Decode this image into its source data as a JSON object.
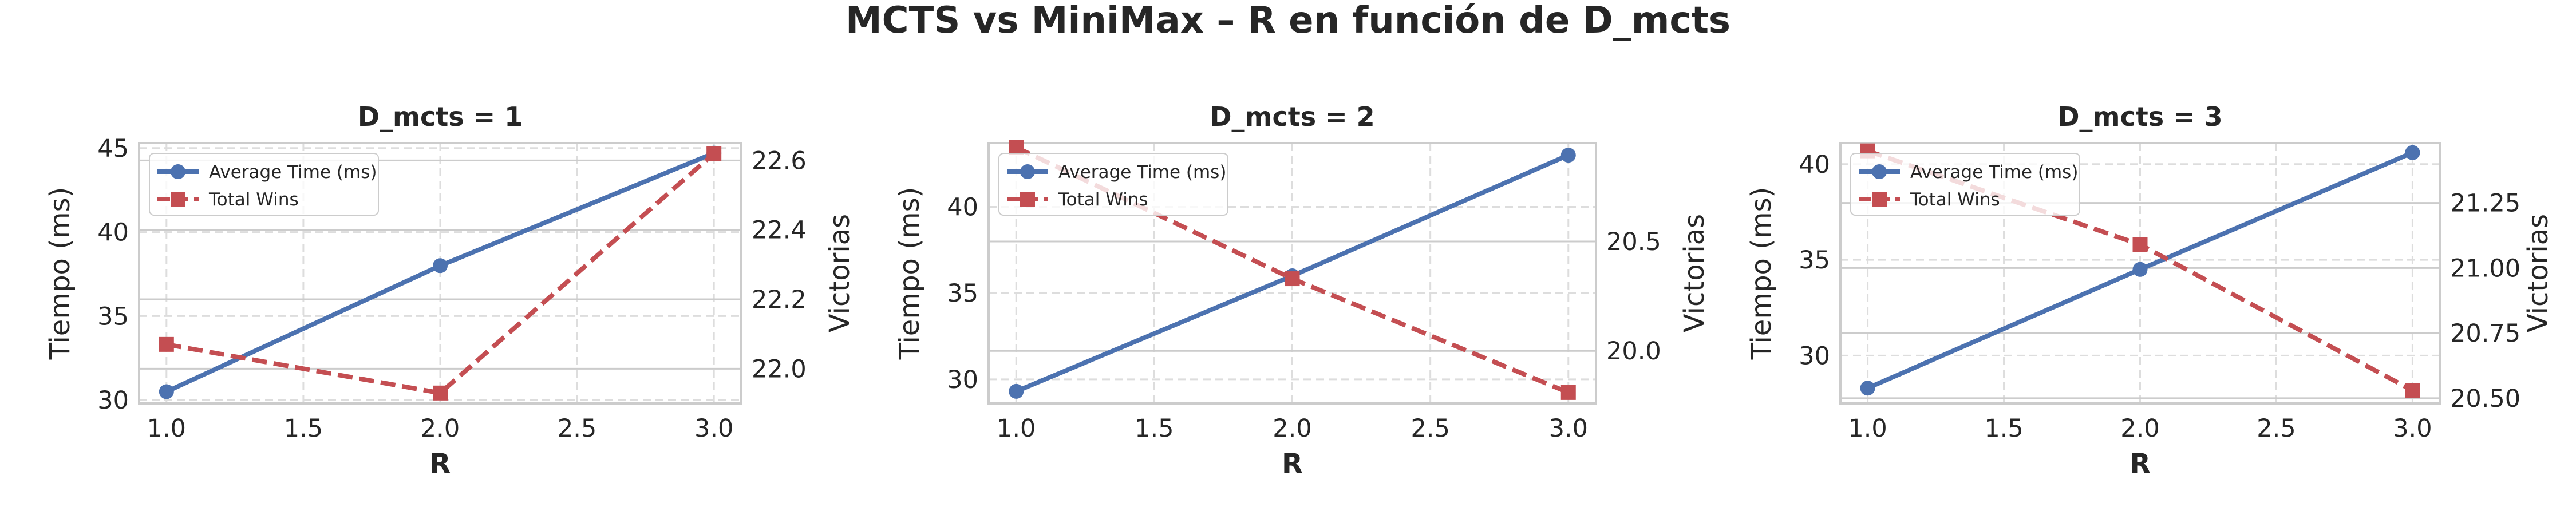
{
  "title": "MCTS vs MiniMax – R en función de D_mcts",
  "colors": {
    "time": "#4c72b0",
    "wins": "#c44e52",
    "grid": "#dddddd",
    "spine": "#cccccc",
    "text": "#262626"
  },
  "chart_data": [
    {
      "type": "line",
      "title": "D_mcts = 1",
      "xlabel": "R",
      "ylabel": "Tiempo (ms)",
      "y2label": "Victorias",
      "x": [
        1.0,
        2.0,
        3.0
      ],
      "xlim": [
        0.9,
        3.1
      ],
      "xticks": [
        "1.0",
        "1.5",
        "2.0",
        "2.5",
        "3.0"
      ],
      "ylim": [
        29.8,
        45.3
      ],
      "yticks": [
        "30",
        "35",
        "40",
        "45"
      ],
      "y2lim": [
        21.9,
        22.65
      ],
      "y2ticks": [
        "22.0",
        "22.2",
        "22.4",
        "22.6"
      ],
      "series": [
        {
          "name": "Average Time (ms)",
          "axis": "left",
          "values": [
            30.5,
            38.0,
            44.7
          ]
        },
        {
          "name": "Total Wins",
          "axis": "right",
          "values": [
            22.07,
            21.93,
            22.62
          ]
        }
      ],
      "legend": "upper-left",
      "grid": true
    },
    {
      "type": "line",
      "title": "D_mcts = 2",
      "xlabel": "R",
      "ylabel": "Tiempo (ms)",
      "y2label": "Victorias",
      "x": [
        1.0,
        2.0,
        3.0
      ],
      "xlim": [
        0.9,
        3.1
      ],
      "xticks": [
        "1.0",
        "1.5",
        "2.0",
        "2.5",
        "3.0"
      ],
      "ylim": [
        28.6,
        43.7
      ],
      "yticks": [
        "30",
        "35",
        "40"
      ],
      "y2lim": [
        19.76,
        20.95
      ],
      "y2ticks": [
        "20.0",
        "20.5"
      ],
      "series": [
        {
          "name": "Average Time (ms)",
          "axis": "left",
          "values": [
            29.3,
            36.0,
            43.0
          ]
        },
        {
          "name": "Total Wins",
          "axis": "right",
          "values": [
            20.93,
            20.33,
            19.81
          ]
        }
      ],
      "legend": "upper-left",
      "grid": true
    },
    {
      "type": "line",
      "title": "D_mcts = 3",
      "xlabel": "R",
      "ylabel": "Tiempo (ms)",
      "y2label": "Victorias",
      "x": [
        1.0,
        2.0,
        3.0
      ],
      "xlim": [
        0.9,
        3.1
      ],
      "xticks": [
        "1.0",
        "1.5",
        "2.0",
        "2.5",
        "3.0"
      ],
      "ylim": [
        27.5,
        41.1
      ],
      "yticks": [
        "30",
        "35",
        "40"
      ],
      "y2lim": [
        20.48,
        21.48
      ],
      "y2ticks": [
        "20.50",
        "20.75",
        "21.00",
        "21.25"
      ],
      "series": [
        {
          "name": "Average Time (ms)",
          "axis": "left",
          "values": [
            28.3,
            34.5,
            40.6
          ]
        },
        {
          "name": "Total Wins",
          "axis": "right",
          "values": [
            21.45,
            21.09,
            20.53
          ]
        }
      ],
      "legend": "upper-left",
      "grid": true
    }
  ]
}
